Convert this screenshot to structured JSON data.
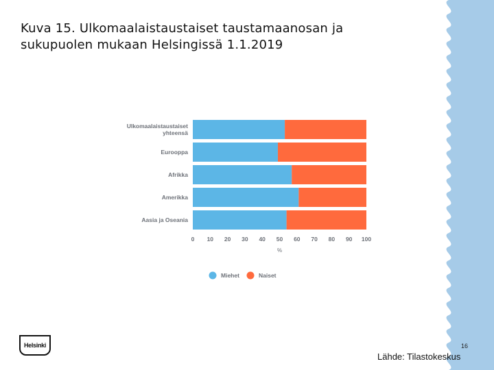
{
  "slide": {
    "title_line1": "Kuva 15. Ulkomaalaistaustaiset taustamaanosan ja",
    "title_line2": "sukupuolen mukaan Helsingissä 1.1.2019",
    "logo_text": "Helsinki",
    "page_number": "16",
    "source": "Lähde: Tilastokeskus"
  },
  "colors": {
    "miehet": "#5cb6e6",
    "naiset": "#ff6a3d",
    "side_band": "#a6cbe8"
  },
  "chart_data": {
    "type": "bar",
    "orientation": "horizontal",
    "stacked": true,
    "categories": [
      [
        "Ulkomaalaistaustaiset",
        "yhteensä"
      ],
      [
        "Eurooppa"
      ],
      [
        "Afrikka"
      ],
      [
        "Amerikka"
      ],
      [
        "Aasia ja Oseania"
      ]
    ],
    "series": [
      {
        "name": "Miehet",
        "values": [
          53,
          49,
          57,
          61,
          54
        ]
      },
      {
        "name": "Naiset",
        "values": [
          47,
          51,
          43,
          39,
          46
        ]
      }
    ],
    "xlim": [
      0,
      100
    ],
    "xticks": [
      0,
      10,
      20,
      30,
      40,
      50,
      60,
      70,
      80,
      90,
      100
    ],
    "xlabel": "%",
    "ylabel": "",
    "legend_position": "bottom"
  }
}
